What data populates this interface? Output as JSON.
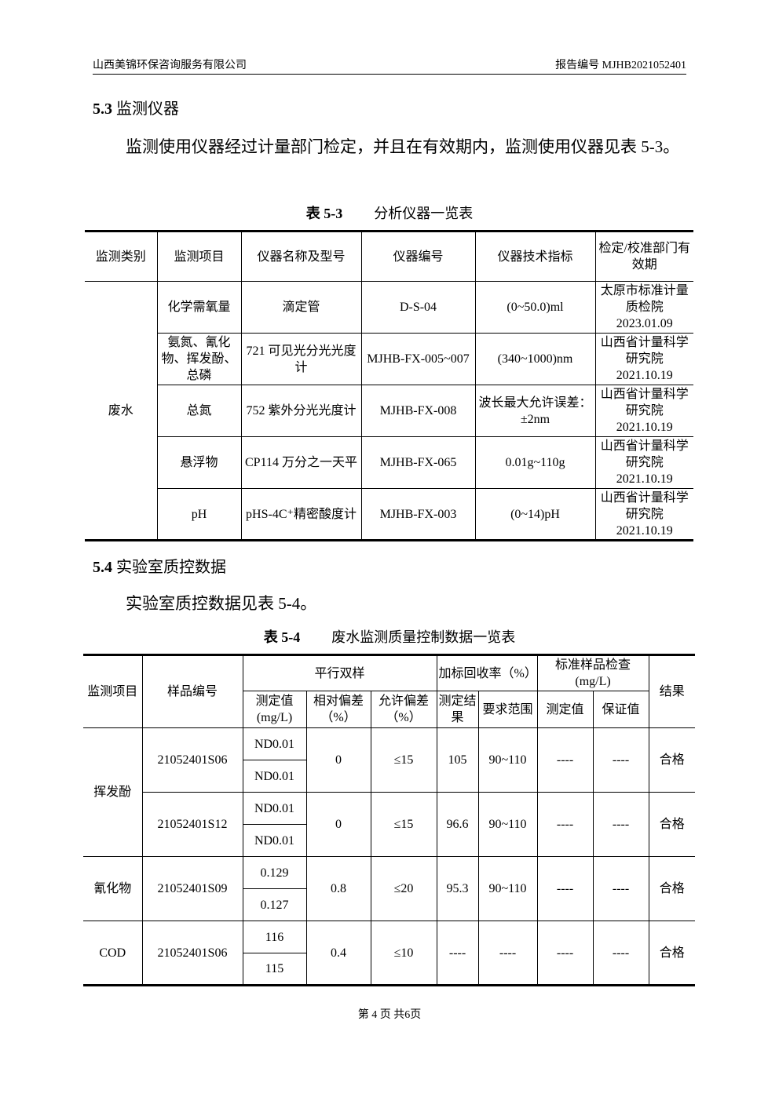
{
  "header": {
    "company": "山西美锦环保咨询服务有限公司",
    "report_no": "报告编号 MJHB2021052401"
  },
  "s53": {
    "num": "5.3",
    "title": "监测仪器",
    "para": "监测使用仪器经过计量部门检定，并且在有效期内，监测使用仪器见表 5-3。"
  },
  "t53": {
    "caption_num": "表 5-3",
    "caption": "分析仪器一览表",
    "headers": [
      "监测类别",
      "监测项目",
      "仪器名称及型号",
      "仪器编号",
      "仪器技术指标",
      "检定/校准部门有效期"
    ],
    "category": "废水",
    "rows": [
      [
        "化学需氧量",
        "滴定管",
        "D-S-04",
        "(0~50.0)ml",
        "太原市标准计量质检院 2023.01.09"
      ],
      [
        "氨氮、氰化物、挥发酚、总磷",
        "721 可见光分光光度计",
        "MJHB-FX-005~007",
        "(340~1000)nm",
        "山西省计量科学研究院 2021.10.19"
      ],
      [
        "总氮",
        "752 紫外分光光度计",
        "MJHB-FX-008",
        "波长最大允许误差：±2nm",
        "山西省计量科学研究院 2021.10.19"
      ],
      [
        "悬浮物",
        "CP114 万分之一天平",
        "MJHB-FX-065",
        "0.01g~110g",
        "山西省计量科学研究院 2021.10.19"
      ],
      [
        "pH",
        "pHS-4C⁺精密酸度计",
        "MJHB-FX-003",
        "(0~14)pH",
        "山西省计量科学研究院 2021.10.19"
      ]
    ]
  },
  "s54": {
    "num": "5.4",
    "title": "实验室质控数据",
    "para": "实验室质控数据见表 5-4。"
  },
  "t54": {
    "caption_num": "表 5-4",
    "caption": "废水监测质量控制数据一览表",
    "h": {
      "item": "监测项目",
      "sample": "样品编号",
      "parallel": "平行双样",
      "spike": "加标回收率（%）",
      "std": "标准样品检查(mg/L)",
      "result": "结果",
      "measured": "测定值(mg/L)",
      "rel_dev": "相对偏差（%）",
      "allow_dev": "允许偏差（%）",
      "spike_result": "测定结果",
      "spike_range": "要求范围",
      "std_measured": "测定值",
      "std_guarantee": "保证值"
    },
    "groups": [
      {
        "item": "挥发酚",
        "samples": [
          {
            "id": "21052401S06",
            "v1": "ND0.01",
            "v2": "ND0.01",
            "rel": "0",
            "allow": "≤15",
            "rec": "105",
            "range": "90~110",
            "sm": "----",
            "sg": "----",
            "res": "合格"
          },
          {
            "id": "21052401S12",
            "v1": "ND0.01",
            "v2": "ND0.01",
            "rel": "0",
            "allow": "≤15",
            "rec": "96.6",
            "range": "90~110",
            "sm": "----",
            "sg": "----",
            "res": "合格"
          }
        ]
      },
      {
        "item": "氰化物",
        "samples": [
          {
            "id": "21052401S09",
            "v1": "0.129",
            "v2": "0.127",
            "rel": "0.8",
            "allow": "≤20",
            "rec": "95.3",
            "range": "90~110",
            "sm": "----",
            "sg": "----",
            "res": "合格"
          }
        ]
      },
      {
        "item": "COD",
        "samples": [
          {
            "id": "21052401S06",
            "v1": "116",
            "v2": "115",
            "rel": "0.4",
            "allow": "≤10",
            "rec": "----",
            "range": "----",
            "sm": "----",
            "sg": "----",
            "res": "合格"
          }
        ]
      }
    ]
  },
  "footer": "第 4 页 共6页"
}
